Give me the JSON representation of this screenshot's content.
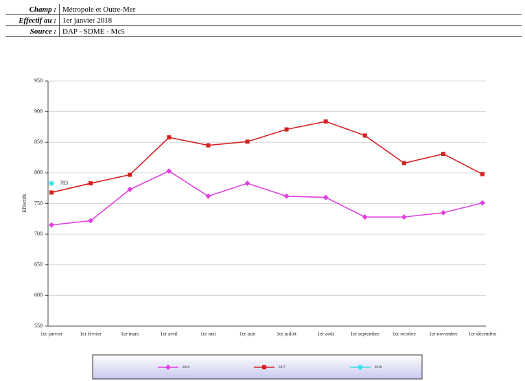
{
  "header": {
    "rows": [
      {
        "label": "Champ :",
        "value": "Métropole et Outre-Mer"
      },
      {
        "label": "Effectif au :",
        "value": "1er janvier 2018"
      },
      {
        "label": "Source :",
        "value": "DAP - SDME - Mc5"
      }
    ]
  },
  "chart_data": {
    "type": "line",
    "y_label": "Effectifs",
    "categories": [
      "1er janvier",
      "1er février",
      "1er mars",
      "1er avril",
      "1er mai",
      "1er juin",
      "1er juillet",
      "1er août",
      "1er septembre",
      "1er octobre",
      "1er novembre",
      "1er décembre"
    ],
    "series": [
      {
        "name": "2016",
        "color": "#e040e0",
        "marker": "diamond",
        "values": [
          715,
          722,
          773,
          803,
          762,
          783,
          762,
          760,
          728,
          728,
          735,
          751
        ]
      },
      {
        "name": "2017",
        "color": "#d42020",
        "marker": "square",
        "values": [
          768,
          783,
          797,
          858,
          845,
          851,
          871,
          884,
          861,
          816,
          831,
          798
        ]
      },
      {
        "name": "2018",
        "color": "#30e0e8",
        "marker": "star",
        "values": [
          783,
          null,
          null,
          null,
          null,
          null,
          null,
          null,
          null,
          null,
          null,
          null
        ],
        "show_labels": true
      }
    ],
    "ylim": [
      550,
      950
    ],
    "yticks": [
      550,
      600,
      650,
      700,
      750,
      800,
      850,
      900,
      950
    ],
    "grid": true,
    "legend": "bottom"
  }
}
